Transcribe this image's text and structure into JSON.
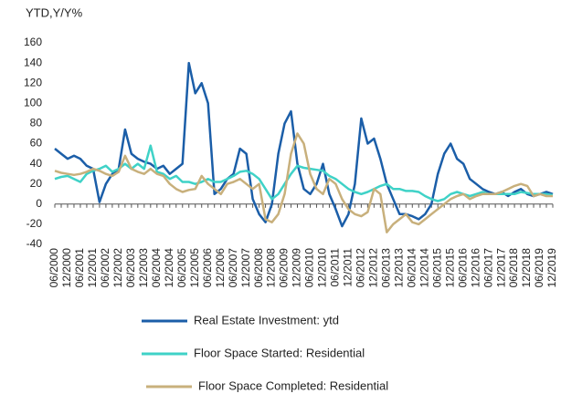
{
  "chart_data": {
    "type": "line",
    "y_label": "YTD,Y/Y%",
    "categories": [
      "06/2000",
      null,
      "12/2000",
      null,
      "06/2001",
      null,
      "12/2001",
      null,
      "06/2002",
      null,
      "12/2002",
      null,
      "06/2003",
      null,
      "12/2003",
      null,
      "06/2004",
      null,
      "12/2004",
      null,
      "06/2005",
      null,
      "12/2005",
      null,
      "06/2006",
      null,
      "12/2006",
      null,
      "06/2007",
      null,
      "12/2007",
      null,
      "06/2008",
      null,
      "12/2008",
      null,
      "06/2009",
      null,
      "12/2009",
      null,
      "06/2010",
      null,
      "12/2010",
      null,
      "06/2011",
      null,
      "12/2011",
      null,
      "06/2012",
      null,
      "12/2012",
      null,
      "06/2013",
      null,
      "12/2013",
      null,
      "06/2014",
      null,
      "12/2014",
      null,
      "06/2015",
      null,
      "12/2015",
      null,
      "06/2016",
      null,
      "12/2016",
      null,
      "06/2017",
      null,
      "12/2017",
      null,
      "06/2018",
      null,
      "12/2018",
      null,
      "06/2019",
      null,
      "12/2019"
    ],
    "series": [
      {
        "name": "Real Estate Investment: ytd",
        "color": "#1b5ea8",
        "values": [
          55,
          50,
          45,
          48,
          45,
          38,
          35,
          2,
          20,
          30,
          35,
          74,
          50,
          45,
          42,
          40,
          35,
          38,
          30,
          35,
          40,
          140,
          110,
          120,
          100,
          10,
          15,
          25,
          30,
          55,
          50,
          5,
          -10,
          -18,
          0,
          50,
          80,
          92,
          40,
          15,
          10,
          20,
          40,
          10,
          -5,
          -22,
          -10,
          20,
          85,
          60,
          65,
          45,
          20,
          5,
          -10,
          -10,
          -12,
          -15,
          -10,
          0,
          30,
          50,
          60,
          45,
          40,
          25,
          20,
          15,
          12,
          10,
          12,
          8,
          12,
          15,
          10,
          8,
          10,
          12,
          10
        ]
      },
      {
        "name": "Floor Space Started: Residential",
        "color": "#3fd2c7",
        "values": [
          25,
          27,
          28,
          25,
          22,
          30,
          33,
          35,
          38,
          32,
          35,
          40,
          35,
          40,
          35,
          58,
          32,
          30,
          25,
          28,
          22,
          22,
          20,
          22,
          25,
          22,
          22,
          25,
          28,
          32,
          33,
          30,
          25,
          15,
          5,
          10,
          20,
          30,
          38,
          36,
          35,
          34,
          33,
          28,
          25,
          20,
          15,
          12,
          10,
          12,
          15,
          18,
          20,
          15,
          15,
          13,
          13,
          12,
          8,
          5,
          3,
          5,
          10,
          12,
          10,
          8,
          10,
          12,
          10,
          10,
          10,
          10,
          10,
          12,
          11,
          10,
          10,
          10,
          9
        ]
      },
      {
        "name": "Floor Space Completed: Residential",
        "color": "#c8b07c",
        "values": [
          33,
          31,
          30,
          29,
          30,
          32,
          35,
          33,
          30,
          28,
          32,
          48,
          35,
          32,
          30,
          35,
          30,
          28,
          20,
          15,
          12,
          14,
          15,
          28,
          20,
          15,
          10,
          20,
          22,
          25,
          20,
          15,
          20,
          -15,
          -18,
          -10,
          10,
          50,
          70,
          60,
          30,
          15,
          10,
          25,
          20,
          5,
          -5,
          -10,
          -12,
          -8,
          15,
          10,
          -28,
          -20,
          -15,
          -10,
          -18,
          -20,
          -15,
          -10,
          -5,
          0,
          5,
          8,
          10,
          5,
          8,
          10,
          10,
          10,
          12,
          15,
          18,
          20,
          18,
          8,
          10,
          8,
          8
        ]
      }
    ],
    "ylim": [
      -40,
      160
    ],
    "yticks": [
      -40,
      -20,
      0,
      20,
      40,
      60,
      80,
      100,
      120,
      140,
      160
    ],
    "grid": false,
    "legend": "bottom"
  }
}
